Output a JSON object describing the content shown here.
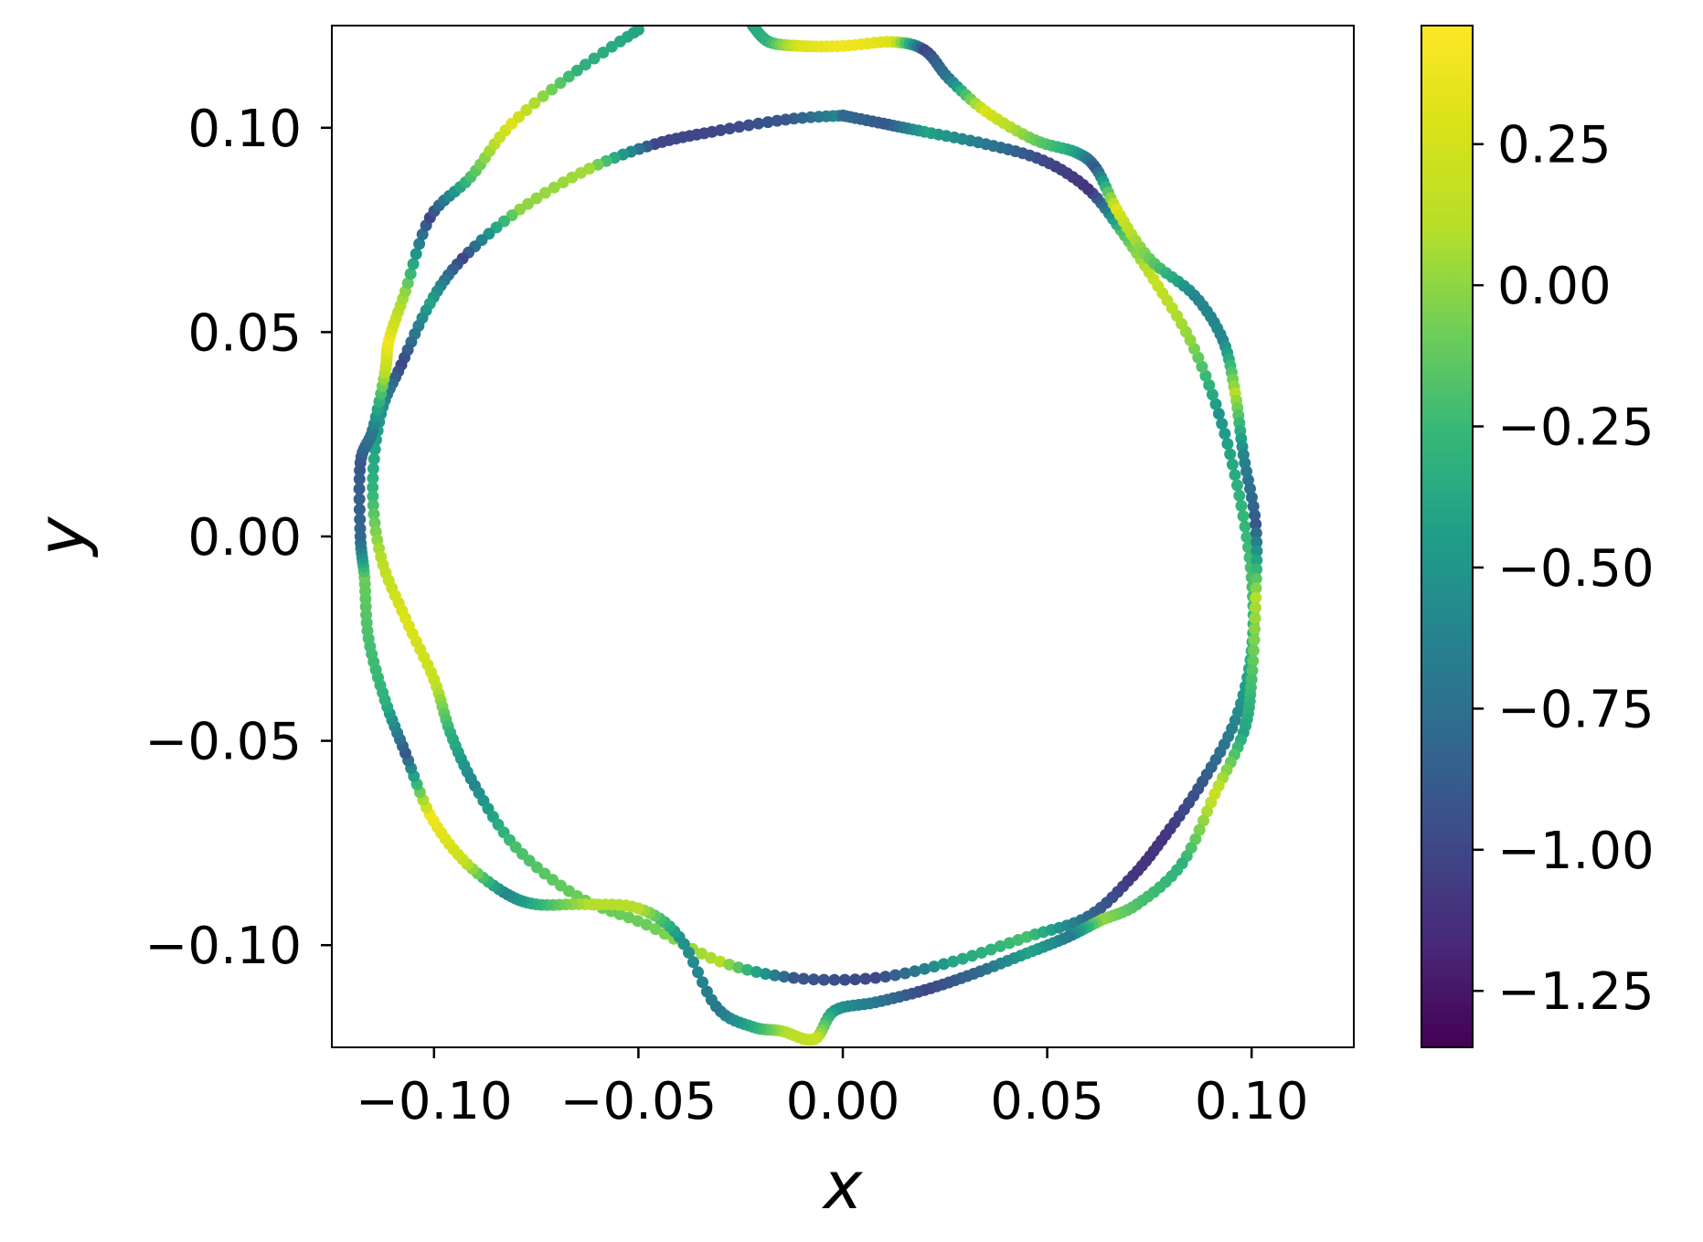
{
  "chart_data": {
    "type": "scatter",
    "title": "",
    "xlabel": "x",
    "ylabel": "y",
    "xlim": [
      -0.125,
      0.125
    ],
    "ylim": [
      -0.125,
      0.125
    ],
    "grid": false,
    "legend": "none",
    "colormap": "viridis",
    "colorbar": {
      "range": [
        -1.35,
        0.46
      ],
      "ticks": [
        0.25,
        0.0,
        -0.25,
        -0.5,
        -0.75,
        -1.0,
        -1.25
      ],
      "tick_labels": [
        "0.25",
        "0.00",
        "−0.25",
        "−0.50",
        "−0.75",
        "−1.00",
        "−1.25"
      ]
    },
    "x_ticks": [
      -0.1,
      -0.05,
      0.0,
      0.05,
      0.1
    ],
    "x_tick_labels": [
      "−0.10",
      "−0.05",
      "0.00",
      "0.05",
      "0.10"
    ],
    "y_ticks": [
      0.1,
      0.05,
      0.0,
      -0.05,
      -0.1
    ],
    "y_tick_labels": [
      "0.10",
      "0.05",
      "0.00",
      "−0.05",
      "−0.10"
    ],
    "series": [
      {
        "curve": "inner",
        "x": [
          0.0,
          -0.014,
          -0.032,
          -0.046,
          -0.062,
          -0.079,
          -0.093,
          -0.101,
          -0.108,
          -0.113,
          -0.115,
          -0.113,
          -0.107,
          -0.1,
          -0.096,
          -0.09,
          -0.08,
          -0.065,
          -0.048,
          -0.03,
          -0.012,
          0.008,
          0.027,
          0.045,
          0.06,
          0.071,
          0.079,
          0.088,
          0.096,
          0.1,
          0.1,
          0.097,
          0.092,
          0.085,
          0.076,
          0.068,
          0.06,
          0.049,
          0.035,
          0.02,
          0.01,
          0.0
        ],
        "y": [
          0.103,
          0.102,
          0.099,
          0.096,
          0.09,
          0.08,
          0.068,
          0.057,
          0.042,
          0.03,
          0.012,
          -0.005,
          -0.02,
          -0.035,
          -0.048,
          -0.061,
          -0.076,
          -0.088,
          -0.095,
          -0.104,
          -0.108,
          -0.108,
          -0.104,
          -0.098,
          -0.093,
          -0.083,
          -0.073,
          -0.06,
          -0.045,
          -0.028,
          -0.01,
          0.01,
          0.03,
          0.048,
          0.063,
          0.075,
          0.085,
          0.092,
          0.096,
          0.099,
          0.101,
          0.103
        ],
        "color": [
          -0.5,
          -0.9,
          -1.0,
          -1.0,
          0.05,
          0.0,
          -1.0,
          -0.4,
          -1.0,
          -0.5,
          -0.3,
          0.1,
          0.3,
          0.2,
          -0.3,
          -0.6,
          -0.2,
          -0.1,
          -0.1,
          0.1,
          -0.9,
          -1.0,
          -0.4,
          -0.2,
          -0.8,
          -1.1,
          -1.1,
          -0.9,
          -0.6,
          -0.3,
          -0.2,
          -0.3,
          -0.5,
          0.0,
          0.2,
          -0.2,
          -1.1,
          -1.0,
          -0.7,
          -0.4,
          -0.9,
          -0.8
        ]
      },
      {
        "curve": "outer",
        "x": [
          -0.022,
          -0.018,
          -0.01,
          0.0,
          0.012,
          0.02,
          0.026,
          0.035,
          0.047,
          0.057,
          0.062,
          0.067,
          0.075,
          0.086,
          0.093,
          0.096,
          0.098,
          0.101,
          0.101,
          0.1,
          0.098,
          0.091,
          0.083,
          0.072,
          0.063,
          0.055,
          0.045,
          0.032,
          0.02,
          0.008,
          -0.002,
          -0.007,
          -0.015,
          -0.022,
          -0.031,
          -0.04,
          -0.05,
          -0.063,
          -0.075,
          -0.083,
          -0.093,
          -0.101,
          -0.107,
          -0.112,
          -0.116,
          -0.117,
          -0.118,
          -0.118,
          -0.115,
          -0.112,
          -0.111,
          -0.107,
          -0.101,
          -0.091,
          -0.081,
          -0.065,
          -0.05
        ],
        "y": [
          0.125,
          0.121,
          0.12,
          0.12,
          0.121,
          0.119,
          0.112,
          0.104,
          0.097,
          0.094,
          0.09,
          0.08,
          0.068,
          0.059,
          0.048,
          0.035,
          0.02,
          0.003,
          -0.015,
          -0.035,
          -0.048,
          -0.063,
          -0.08,
          -0.09,
          -0.094,
          -0.098,
          -0.102,
          -0.107,
          -0.111,
          -0.114,
          -0.116,
          -0.123,
          -0.121,
          -0.12,
          -0.115,
          -0.098,
          -0.091,
          -0.09,
          -0.09,
          -0.087,
          -0.079,
          -0.068,
          -0.053,
          -0.04,
          -0.025,
          -0.01,
          0.0,
          0.018,
          0.026,
          0.04,
          0.048,
          0.06,
          0.078,
          0.088,
          0.101,
          0.114,
          0.124
        ],
        "color": [
          -0.4,
          -0.3,
          0.3,
          0.4,
          0.3,
          -1.0,
          -0.7,
          0.3,
          -0.1,
          -0.4,
          -0.9,
          0.3,
          -0.1,
          -0.6,
          -0.6,
          0.1,
          -0.6,
          -0.9,
          0.1,
          -0.2,
          -0.4,
          0.2,
          -0.3,
          -0.2,
          0.0,
          -0.7,
          -0.4,
          -0.8,
          -1.0,
          -0.7,
          -0.5,
          0.2,
          0.1,
          -0.3,
          -0.7,
          -0.5,
          0.1,
          0.1,
          -0.3,
          -0.6,
          0.2,
          0.4,
          -0.9,
          -0.3,
          -0.2,
          -0.1,
          -0.8,
          -0.9,
          -0.7,
          0.1,
          0.4,
          0.0,
          -1.0,
          -0.2,
          0.3,
          -0.3,
          -0.4
        ]
      }
    ]
  }
}
